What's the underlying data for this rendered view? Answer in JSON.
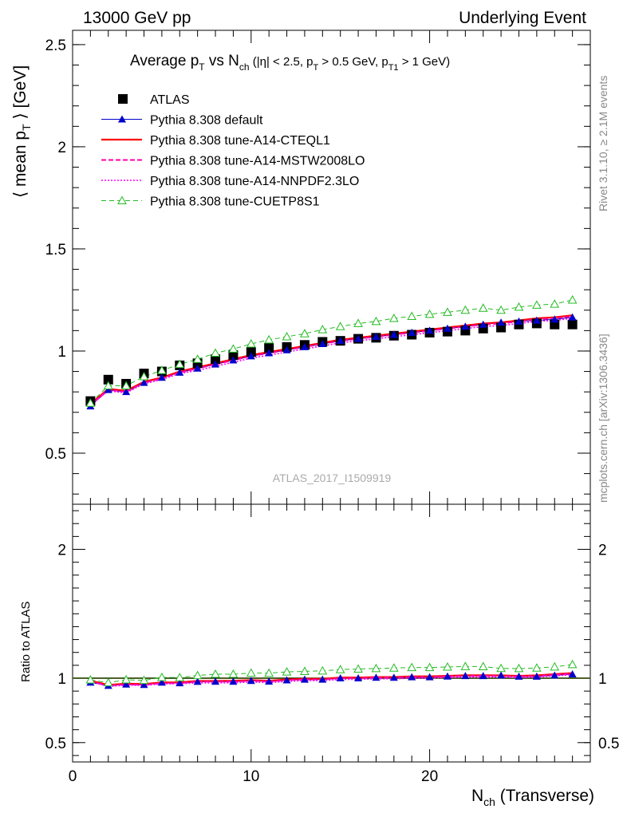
{
  "header": {
    "left": "13000 GeV pp",
    "right": "Underlying Event"
  },
  "side_labels": {
    "rivet": "Rivet 3.1.10, ≥ 2.1M events",
    "mcplots": "mcplots.cern.ch [arXiv:1306.3436]"
  },
  "watermark": "ATLAS_2017_I1509919",
  "colors": {
    "atlas": "#000000",
    "default": "#0000cc",
    "cteql1": "#ff0000",
    "mstw": "#ff00aa",
    "nnpdf": "#ff00ff",
    "cuetp8s1": "#22bb22",
    "ref_band": "#ccff66"
  },
  "chart_data": [
    {
      "type": "line",
      "title_parts": {
        "main": "Average p",
        "sub1": "T",
        "vs": " vs N",
        "sub2": "ch",
        "cut1": " (|η| < 2.5, p",
        "cut1sub": "T",
        "cut2": " > 0.5 GeV, p",
        "cut2sub": "T1",
        "cut3": " > 1 GeV)"
      },
      "ylabel": "⟨ mean p",
      "ylabel_sub": "T",
      "ylabel_tail": " ⟩ [GeV]",
      "ylim": [
        0.25,
        2.57
      ],
      "xlim": [
        0,
        29
      ],
      "yticks": [
        0.5,
        1,
        1.5,
        2,
        2.5
      ],
      "ytick_labels": [
        "0.5",
        "1",
        "1.5",
        "2",
        "2.5"
      ],
      "legend_position": "top-left",
      "x": [
        1,
        2,
        3,
        4,
        5,
        6,
        7,
        8,
        9,
        10,
        11,
        12,
        13,
        14,
        15,
        16,
        17,
        18,
        19,
        20,
        21,
        22,
        23,
        24,
        25,
        26,
        27,
        28
      ],
      "series": [
        {
          "name": "ATLAS",
          "key": "atlas",
          "marker": "square",
          "values": [
            0.755,
            0.86,
            0.84,
            0.89,
            0.9,
            0.93,
            0.94,
            0.96,
            0.98,
            0.995,
            1.015,
            1.02,
            1.03,
            1.045,
            1.05,
            1.06,
            1.065,
            1.075,
            1.08,
            1.09,
            1.095,
            1.1,
            1.11,
            1.115,
            1.13,
            1.135,
            1.13,
            1.13
          ]
        },
        {
          "name": "Pythia 8.308 default",
          "key": "default",
          "marker": "triangle",
          "values": [
            0.73,
            0.81,
            0.8,
            0.845,
            0.87,
            0.895,
            0.915,
            0.935,
            0.955,
            0.975,
            0.99,
            1.005,
            1.02,
            1.035,
            1.05,
            1.06,
            1.07,
            1.08,
            1.09,
            1.1,
            1.11,
            1.12,
            1.13,
            1.14,
            1.145,
            1.15,
            1.155,
            1.165
          ]
        },
        {
          "name": "Pythia 8.308 tune-A14-CTEQL1",
          "key": "cteql1",
          "marker": "none",
          "values": [
            0.74,
            0.815,
            0.805,
            0.85,
            0.87,
            0.9,
            0.92,
            0.94,
            0.96,
            0.98,
            0.995,
            1.01,
            1.025,
            1.04,
            1.055,
            1.065,
            1.075,
            1.085,
            1.095,
            1.105,
            1.115,
            1.125,
            1.135,
            1.14,
            1.15,
            1.16,
            1.165,
            1.175
          ]
        },
        {
          "name": "Pythia 8.308 tune-A14-MSTW2008LO",
          "key": "mstw",
          "marker": "none",
          "values": [
            0.735,
            0.81,
            0.8,
            0.845,
            0.865,
            0.895,
            0.915,
            0.935,
            0.955,
            0.975,
            0.99,
            1.005,
            1.02,
            1.035,
            1.05,
            1.06,
            1.07,
            1.08,
            1.09,
            1.1,
            1.11,
            1.12,
            1.13,
            1.135,
            1.145,
            1.155,
            1.16,
            1.17
          ]
        },
        {
          "name": "Pythia 8.308 tune-A14-NNPDF2.3LO",
          "key": "nnpdf",
          "marker": "none",
          "values": [
            0.735,
            0.805,
            0.795,
            0.84,
            0.86,
            0.89,
            0.905,
            0.925,
            0.945,
            0.965,
            0.98,
            0.995,
            1.01,
            1.025,
            1.04,
            1.05,
            1.06,
            1.07,
            1.08,
            1.09,
            1.1,
            1.11,
            1.12,
            1.125,
            1.135,
            1.145,
            1.15,
            1.16
          ]
        },
        {
          "name": "Pythia 8.308 tune-CUETP8S1",
          "key": "cuetp8s1",
          "marker": "open-triangle",
          "values": [
            0.745,
            0.83,
            0.83,
            0.875,
            0.905,
            0.935,
            0.96,
            0.99,
            1.01,
            1.035,
            1.055,
            1.07,
            1.085,
            1.105,
            1.12,
            1.135,
            1.145,
            1.16,
            1.17,
            1.18,
            1.19,
            1.2,
            1.21,
            1.2,
            1.215,
            1.225,
            1.23,
            1.25
          ]
        }
      ]
    },
    {
      "type": "line",
      "ylabel": "Ratio to ATLAS",
      "xlabel": "N",
      "xlabel_sub": "ch",
      "xlabel_tail": " (Transverse)",
      "ylim": [
        0.35,
        2.35
      ],
      "xlim": [
        0,
        29
      ],
      "yticks": [
        0.5,
        1,
        2
      ],
      "ytick_labels": [
        "0.5",
        "1",
        "2"
      ],
      "xticks": [
        0,
        10,
        20
      ],
      "xtick_labels": [
        "0",
        "10",
        "20"
      ],
      "x": [
        1,
        2,
        3,
        4,
        5,
        6,
        7,
        8,
        9,
        10,
        11,
        12,
        13,
        14,
        15,
        16,
        17,
        18,
        19,
        20,
        21,
        22,
        23,
        24,
        25,
        26,
        27,
        28
      ],
      "series": [
        {
          "name": "Pythia 8.308 default",
          "key": "default",
          "marker": "triangle",
          "values": [
            0.967,
            0.942,
            0.952,
            0.949,
            0.967,
            0.962,
            0.973,
            0.974,
            0.974,
            0.98,
            0.975,
            0.985,
            0.99,
            0.99,
            1.0,
            1.0,
            1.005,
            1.005,
            1.009,
            1.009,
            1.014,
            1.018,
            1.018,
            1.022,
            1.013,
            1.013,
            1.022,
            1.031
          ]
        },
        {
          "name": "Pythia 8.308 tune-A14-CTEQL1",
          "key": "cteql1",
          "marker": "none",
          "values": [
            0.98,
            0.948,
            0.958,
            0.955,
            0.967,
            0.968,
            0.979,
            0.979,
            0.98,
            0.985,
            0.98,
            0.99,
            0.995,
            0.995,
            1.005,
            1.005,
            1.009,
            1.009,
            1.014,
            1.014,
            1.018,
            1.023,
            1.023,
            1.022,
            1.018,
            1.022,
            1.031,
            1.04
          ]
        },
        {
          "name": "Pythia 8.308 tune-A14-MSTW2008LO",
          "key": "mstw",
          "marker": "none",
          "values": [
            0.974,
            0.942,
            0.952,
            0.949,
            0.961,
            0.962,
            0.973,
            0.974,
            0.974,
            0.98,
            0.975,
            0.985,
            0.99,
            0.99,
            1.0,
            1.0,
            1.005,
            1.005,
            1.009,
            1.009,
            1.014,
            1.018,
            1.018,
            1.018,
            1.013,
            1.018,
            1.027,
            1.035
          ]
        },
        {
          "name": "Pythia 8.308 tune-A14-NNPDF2.3LO",
          "key": "nnpdf",
          "marker": "none",
          "values": [
            0.974,
            0.936,
            0.946,
            0.944,
            0.956,
            0.957,
            0.963,
            0.964,
            0.964,
            0.97,
            0.966,
            0.975,
            0.981,
            0.981,
            0.99,
            0.991,
            0.995,
            0.995,
            1.0,
            1.0,
            1.005,
            1.009,
            1.009,
            1.009,
            1.004,
            1.009,
            1.018,
            1.027
          ]
        },
        {
          "name": "Pythia 8.308 tune-CUETP8S1",
          "key": "cuetp8s1",
          "marker": "open-triangle",
          "values": [
            0.987,
            0.965,
            0.988,
            0.983,
            1.006,
            1.005,
            1.021,
            1.031,
            1.031,
            1.04,
            1.039,
            1.049,
            1.053,
            1.057,
            1.067,
            1.071,
            1.075,
            1.079,
            1.083,
            1.083,
            1.087,
            1.091,
            1.09,
            1.076,
            1.075,
            1.079,
            1.088,
            1.106
          ]
        }
      ]
    }
  ]
}
